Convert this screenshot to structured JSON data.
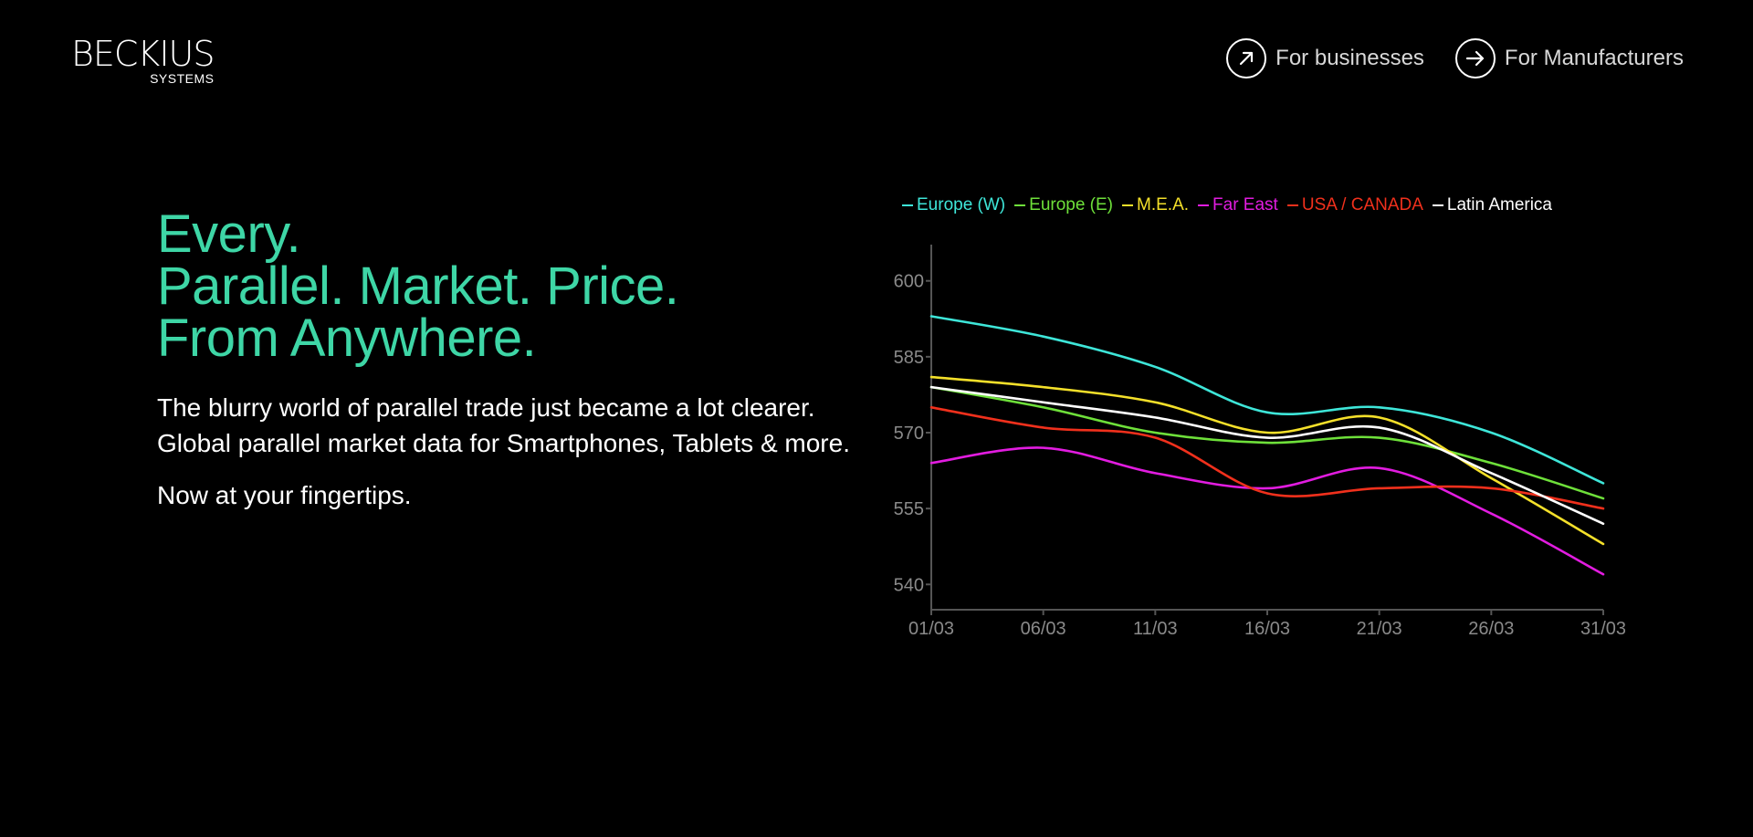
{
  "logo": {
    "brand": "BECKIUS",
    "sub": "SYSTEMS"
  },
  "nav": [
    {
      "label": "For businesses",
      "icon": "arrow-up-right-icon"
    },
    {
      "label": "For Manufacturers",
      "icon": "arrow-right-icon"
    }
  ],
  "hero": {
    "headline": [
      "Every.",
      "Parallel. Market. Price.",
      "From Anywhere."
    ],
    "body": "The blurry world of parallel trade just became a lot clearer. Global parallel market data for Smartphones, Tablets & more.",
    "tagline": "Now at your fingertips."
  },
  "colors": {
    "accent": "#3ed6a6",
    "background": "#000000"
  },
  "chart_data": {
    "type": "line",
    "x": [
      "01/03",
      "06/03",
      "11/03",
      "16/03",
      "21/03",
      "26/03",
      "31/03"
    ],
    "yticks": [
      600,
      585,
      570,
      555,
      540
    ],
    "ylim": [
      535,
      605
    ],
    "legend": "top-left",
    "grid": false,
    "series": [
      {
        "name": "Europe (W)",
        "color": "#3ee6d9",
        "values": [
          593,
          589,
          583,
          574,
          575,
          570,
          560
        ]
      },
      {
        "name": "Europe (E)",
        "color": "#6ee03a",
        "values": [
          579,
          575,
          570,
          568,
          569,
          564,
          557
        ]
      },
      {
        "name": "M.E.A.",
        "color": "#f4e02a",
        "values": [
          581,
          579,
          576,
          570,
          573,
          561,
          548
        ]
      },
      {
        "name": "Far East",
        "color": "#e21ce0",
        "values": [
          564,
          567,
          562,
          559,
          563,
          554,
          542
        ]
      },
      {
        "name": "USA / CANADA",
        "color": "#f0301c",
        "values": [
          575,
          571,
          569,
          558,
          559,
          559,
          555
        ]
      },
      {
        "name": "Latin America",
        "color": "#ffffff",
        "values": [
          579,
          576,
          573,
          569,
          571,
          562,
          552
        ]
      }
    ]
  }
}
